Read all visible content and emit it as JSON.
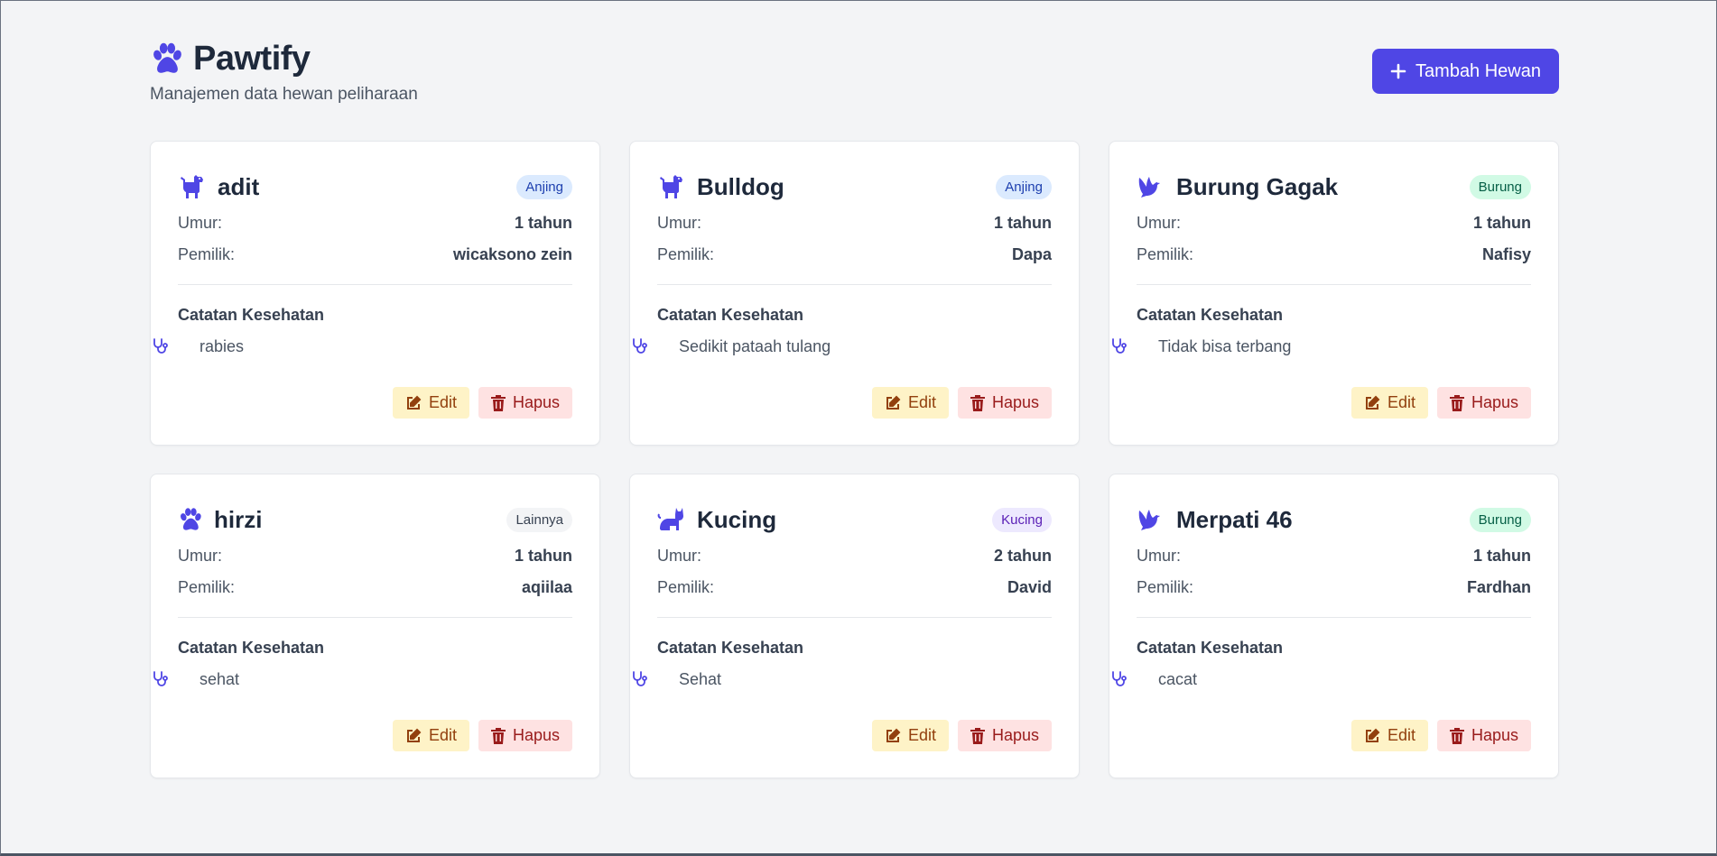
{
  "app": {
    "title": "Pawtify",
    "subtitle": "Manajemen data hewan peliharaan",
    "add_button": "Tambah Hewan",
    "accent": "#4f46e5"
  },
  "labels": {
    "age": "Umur:",
    "owner": "Pemilik:",
    "notes": "Catatan Kesehatan",
    "edit": "Edit",
    "delete": "Hapus"
  },
  "pets": [
    {
      "name": "adit",
      "icon": "dog-icon",
      "species": "Anjing",
      "age": "1 tahun",
      "owner": "wicaksono zein",
      "note": "rabies"
    },
    {
      "name": "Bulldog",
      "icon": "dog-icon",
      "species": "Anjing",
      "age": "1 tahun",
      "owner": "Dapa",
      "note": "Sedikit pataah tulang"
    },
    {
      "name": "Burung Gagak",
      "icon": "dove-icon",
      "species": "Burung",
      "age": "1 tahun",
      "owner": "Nafisy",
      "note": "Tidak bisa terbang"
    },
    {
      "name": "hirzi",
      "icon": "paw-icon",
      "species": "Lainnya",
      "age": "1 tahun",
      "owner": "aqiilaa",
      "note": "sehat"
    },
    {
      "name": "Kucing",
      "icon": "cat-icon",
      "species": "Kucing",
      "age": "2 tahun",
      "owner": "David",
      "note": "Sehat"
    },
    {
      "name": "Merpati 46",
      "icon": "dove-icon",
      "species": "Burung",
      "age": "1 tahun",
      "owner": "Fardhan",
      "note": "cacat"
    }
  ],
  "badge_colors": {
    "Anjing": {
      "bg": "#dbeafe",
      "fg": "#1e40af"
    },
    "Burung": {
      "bg": "#d1fae5",
      "fg": "#065f46"
    },
    "Lainnya": {
      "bg": "#f3f4f6",
      "fg": "#374151"
    },
    "Kucing": {
      "bg": "#ede9fe",
      "fg": "#5b21b6"
    }
  }
}
